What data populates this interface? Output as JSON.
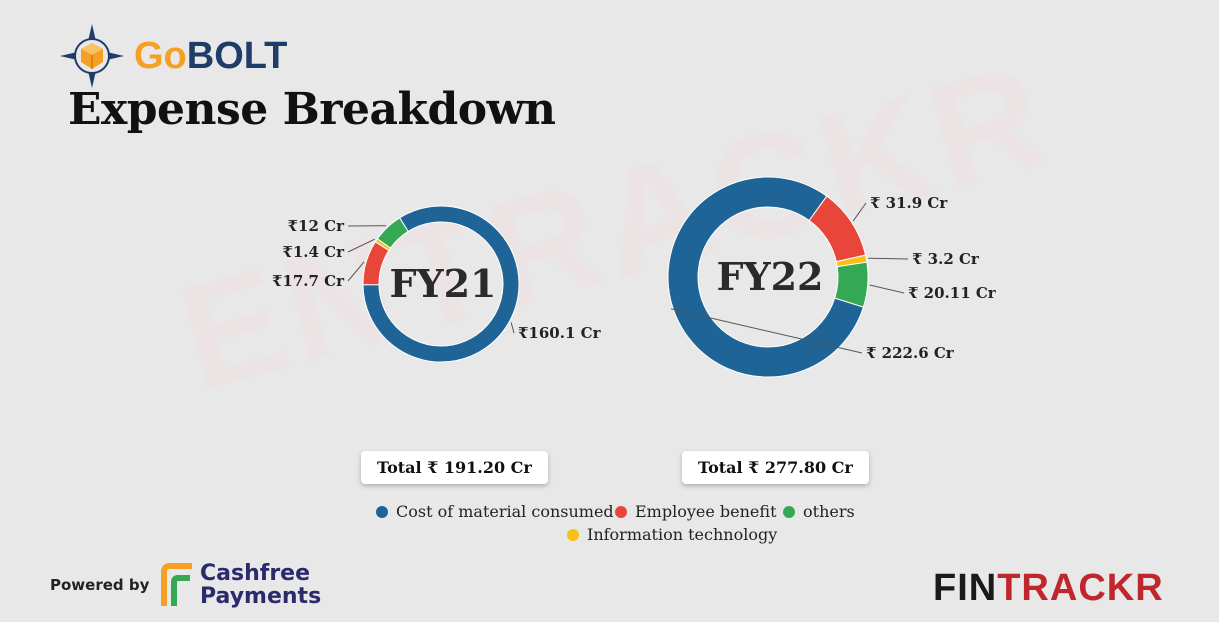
{
  "brand": {
    "logo_part1": "Go",
    "logo_part2": "BOLT"
  },
  "page_title": "Expense Breakdown",
  "watermark": "ENTRACKR",
  "colors": {
    "cost_of_material": "#1f6496",
    "employee_benefit": "#e8463a",
    "others": "#35a853",
    "information_technology": "#f7c012"
  },
  "chart_data": [
    {
      "type": "pie",
      "title": "FY21",
      "total_label": "Total ₹ 191.20 Cr",
      "slices": [
        {
          "name": "Cost of material consumed",
          "value": 160.1,
          "label": "₹160.1 Cr"
        },
        {
          "name": "Employee benefit",
          "value": 17.7,
          "label": "₹17.7 Cr"
        },
        {
          "name": "Information technology",
          "value": 1.4,
          "label": "₹1.4 Cr"
        },
        {
          "name": "others",
          "value": 12,
          "label": "₹12 Cr"
        }
      ]
    },
    {
      "type": "pie",
      "title": "FY22",
      "total_label": "Total ₹ 277.80 Cr",
      "slices": [
        {
          "name": "Cost of material consumed",
          "value": 222.6,
          "label": "₹ 222.6 Cr"
        },
        {
          "name": "Employee benefit",
          "value": 31.9,
          "label": "₹ 31.9 Cr"
        },
        {
          "name": "Information technology",
          "value": 3.2,
          "label": "₹ 3.2 Cr"
        },
        {
          "name": "others",
          "value": 20.11,
          "label": "₹ 20.11 Cr"
        }
      ]
    }
  ],
  "legend": [
    {
      "label": "Cost of material consumed",
      "color": "#1f6496"
    },
    {
      "label": "Employee benefit",
      "color": "#e8463a"
    },
    {
      "label": "others",
      "color": "#35a853"
    },
    {
      "label": "Information technology",
      "color": "#f7c012"
    }
  ],
  "footer": {
    "powered_by": "Powered by",
    "cashfree_line1": "Cashfree",
    "cashfree_line2": "Payments",
    "fintrackr_part1": "FIN",
    "fintrackr_part2": "TRACKR"
  }
}
